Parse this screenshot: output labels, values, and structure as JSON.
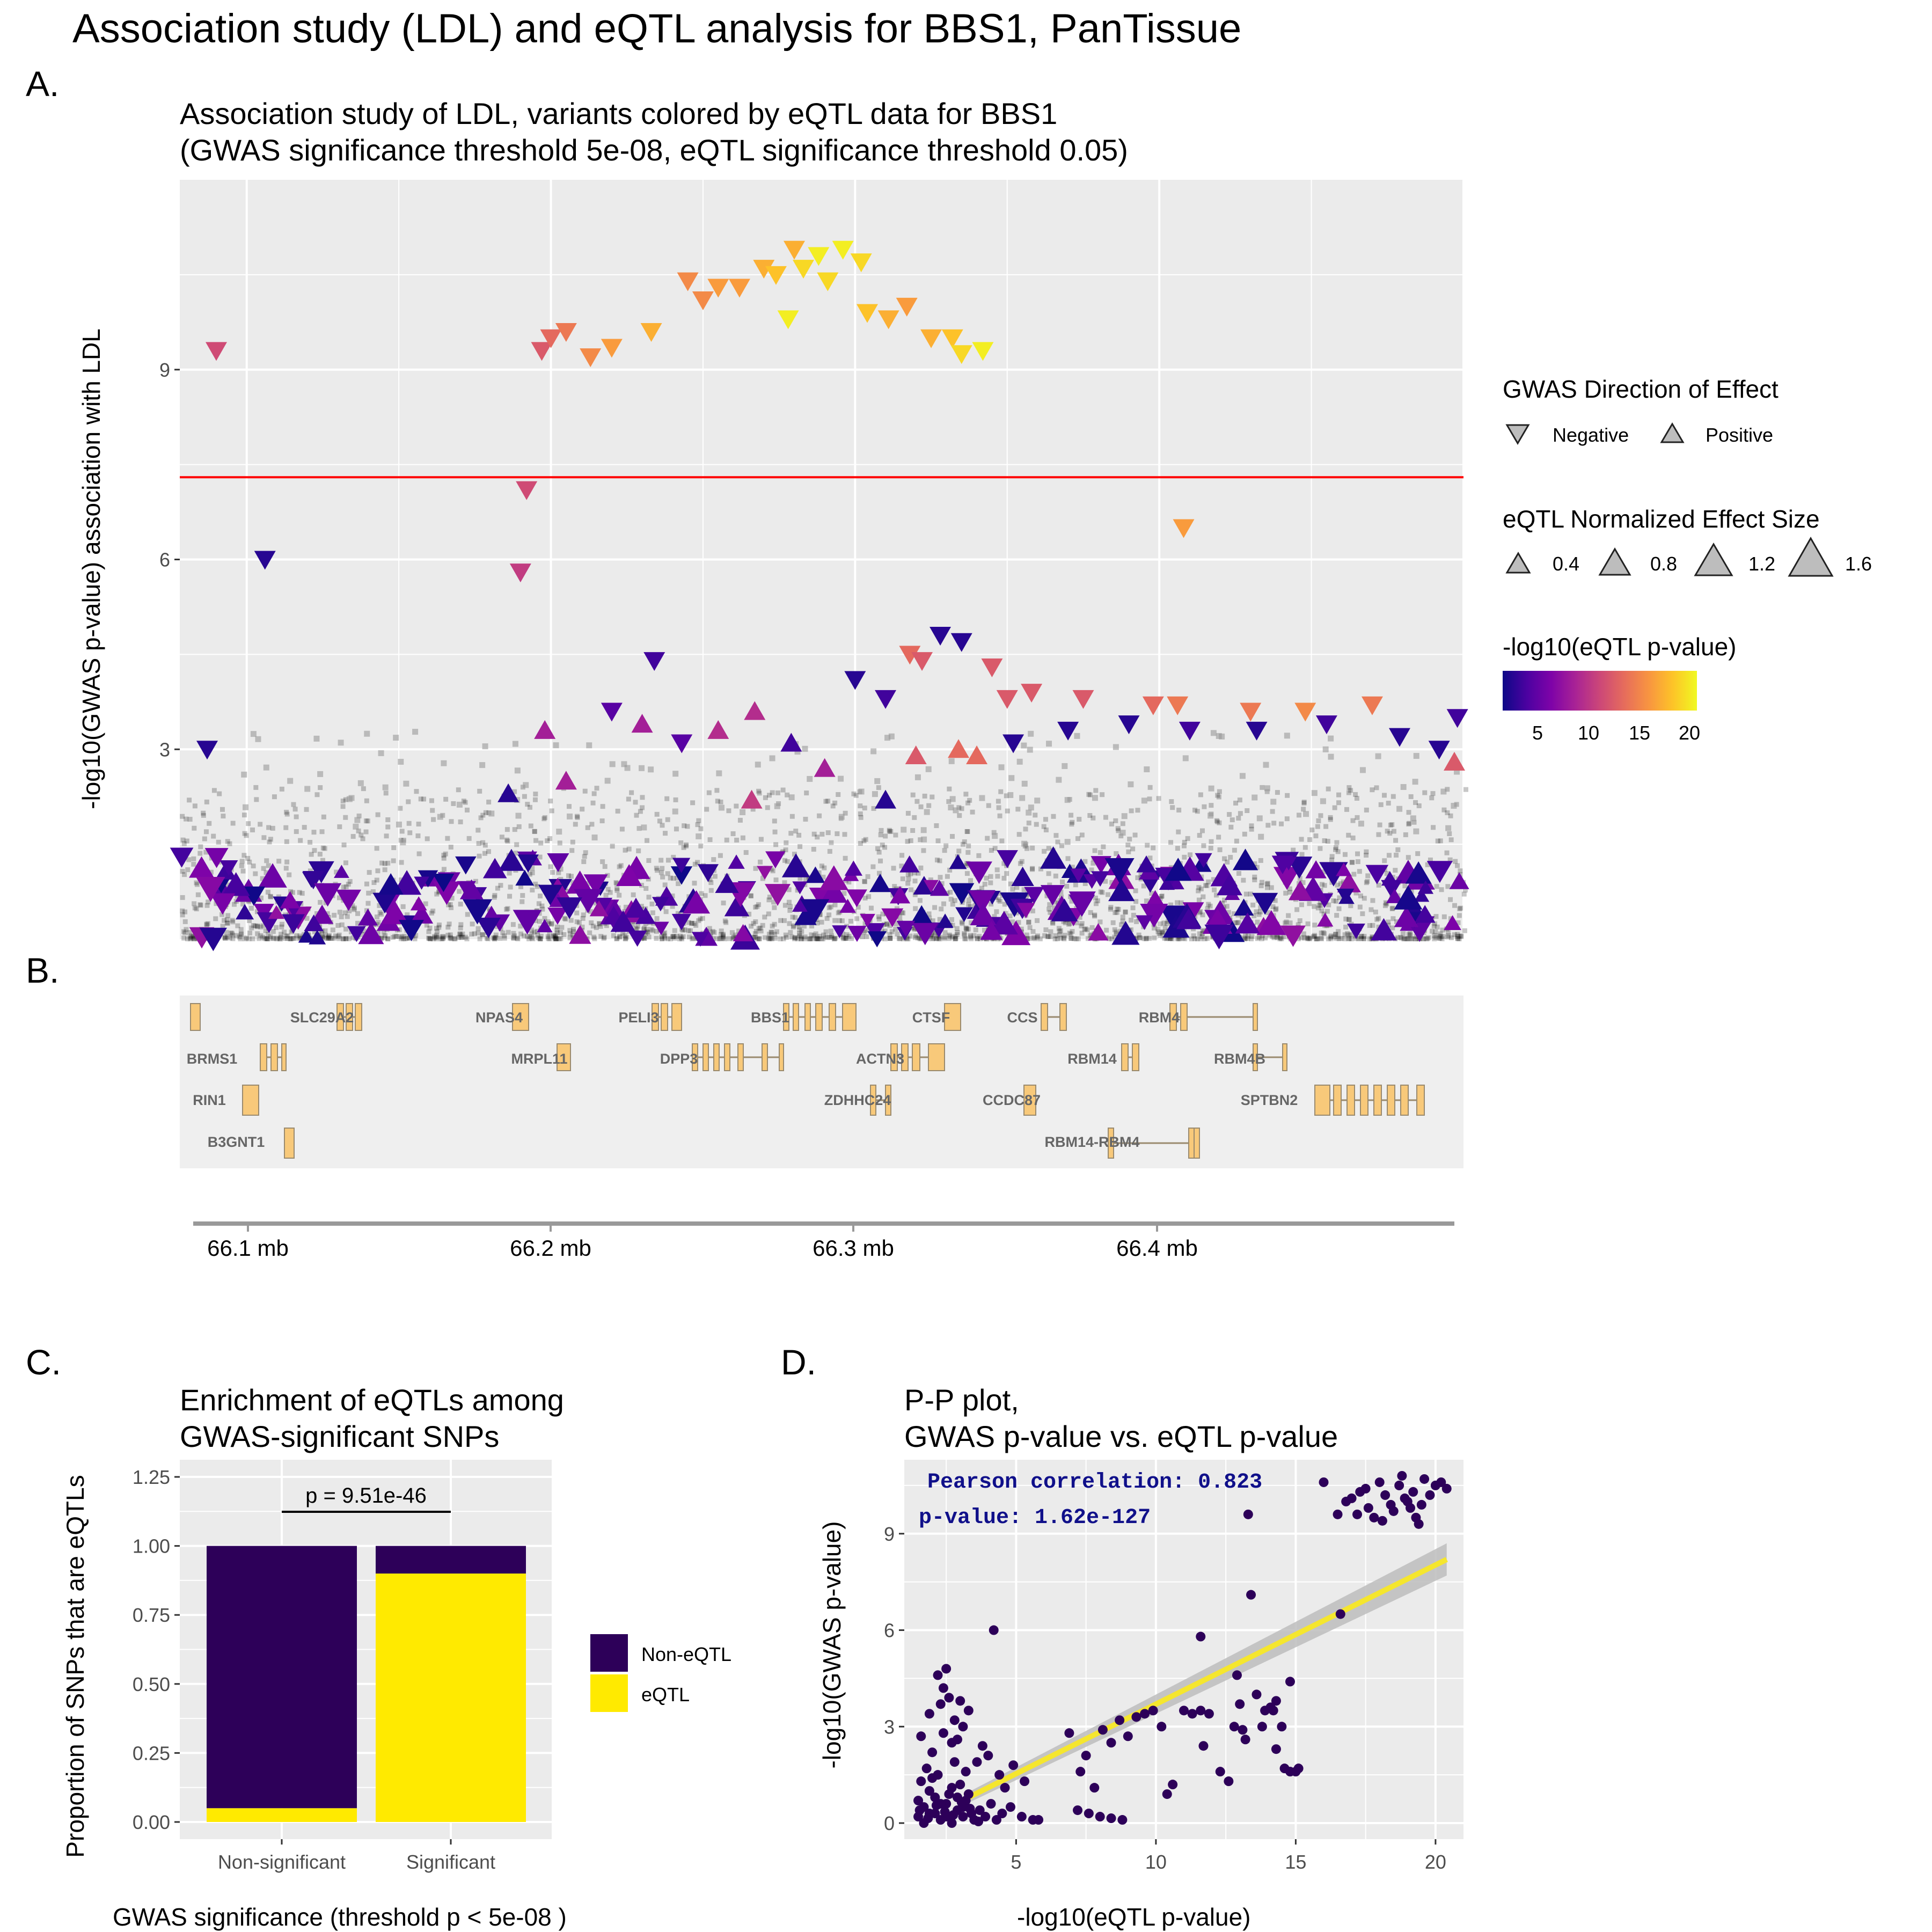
{
  "page_title": "Association study (LDL) and eQTL analysis for BBS1,  PanTissue",
  "panels": {
    "A": {
      "letter": "A.",
      "title_line1": "Association study of LDL, variants colored by eQTL data for BBS1",
      "title_line2": "(GWAS significance threshold 5e-08, eQTL significance threshold 0.05)",
      "ylabel": "-log10(GWAS p-value)  association with  LDL"
    },
    "B": {
      "letter": "B."
    },
    "C": {
      "letter": "C.",
      "title_line1": "Enrichment of eQTLs among",
      "title_line2": "GWAS-significant SNPs",
      "ylabel": "Proportion of SNPs that are eQTLs",
      "xlabel": "GWAS significance (threshold p < 5e-08 )",
      "pvalue_label": "p = 9.51e-46"
    },
    "D": {
      "letter": "D.",
      "title_line1": "P-P plot,",
      "title_line2": "GWAS p-value vs. eQTL p-value",
      "ylabel": "-log10(GWAS p-value)",
      "xlabel": "-log10(eQTL p-value)",
      "annotation_line1": "Pearson correlation: 0.823",
      "annotation_line2": "p-value: 1.62e-127"
    }
  },
  "legend": {
    "direction_title": "GWAS Direction of Effect",
    "direction_items": [
      "Negative",
      "Positive"
    ],
    "size_title": "eQTL Normalized Effect Size",
    "size_items": [
      "0.4",
      "0.8",
      "1.2",
      "1.6"
    ],
    "color_title": "-log10(eQTL p-value)",
    "color_ticks": [
      "5",
      "10",
      "15",
      "20"
    ],
    "bar_legend_items": [
      "Non-eQTL",
      "eQTL"
    ]
  },
  "colors": {
    "panel_bg": "#ebebeb",
    "grid": "#ffffff",
    "threshold_line": "#ff0000",
    "non_eqtl": "#2d0059",
    "eqtl": "#ffea00",
    "gene_fill": "#f8c97a",
    "gene_stroke": "#9a8a6e",
    "fit_line": "#f5e62e"
  },
  "chart_data": [
    {
      "type": "scatter",
      "title": "Association study of LDL, variants colored by eQTL data for BBS1",
      "subtitle": "(GWAS significance threshold 5e-08, eQTL significance threshold 0.05)",
      "ylabel": "-log10(GWAS p-value)  association with  LDL",
      "ylim": [
        0,
        12
      ],
      "yticks": [
        "3",
        "6",
        "9"
      ],
      "xlim": [
        66.078,
        66.5
      ],
      "threshold": 7.3,
      "highlighted_points": [
        {
          "x": 66.106,
          "y": 6.0,
          "dir": "neg",
          "c": 2
        },
        {
          "x": 66.087,
          "y": 3.0,
          "dir": "neg",
          "c": 2
        },
        {
          "x": 66.09,
          "y": 9.3,
          "dir": "neg",
          "c": 11
        },
        {
          "x": 66.192,
          "y": 7.1,
          "dir": "neg",
          "c": 11
        },
        {
          "x": 66.19,
          "y": 5.8,
          "dir": "neg",
          "c": 10
        },
        {
          "x": 66.197,
          "y": 9.3,
          "dir": "neg",
          "c": 12
        },
        {
          "x": 66.2,
          "y": 9.5,
          "dir": "neg",
          "c": 13
        },
        {
          "x": 66.205,
          "y": 9.6,
          "dir": "neg",
          "c": 14
        },
        {
          "x": 66.213,
          "y": 9.2,
          "dir": "neg",
          "c": 15
        },
        {
          "x": 66.22,
          "y": 9.35,
          "dir": "neg",
          "c": 16
        },
        {
          "x": 66.233,
          "y": 9.6,
          "dir": "neg",
          "c": 17
        },
        {
          "x": 66.245,
          "y": 10.4,
          "dir": "neg",
          "c": 15
        },
        {
          "x": 66.25,
          "y": 10.1,
          "dir": "neg",
          "c": 15
        },
        {
          "x": 66.255,
          "y": 10.3,
          "dir": "neg",
          "c": 16
        },
        {
          "x": 66.262,
          "y": 10.3,
          "dir": "neg",
          "c": 16
        },
        {
          "x": 66.27,
          "y": 10.6,
          "dir": "neg",
          "c": 17
        },
        {
          "x": 66.274,
          "y": 10.5,
          "dir": "neg",
          "c": 18
        },
        {
          "x": 66.28,
          "y": 10.9,
          "dir": "neg",
          "c": 17
        },
        {
          "x": 66.283,
          "y": 10.6,
          "dir": "neg",
          "c": 19
        },
        {
          "x": 66.288,
          "y": 10.8,
          "dir": "neg",
          "c": 20
        },
        {
          "x": 66.291,
          "y": 10.4,
          "dir": "neg",
          "c": 19
        },
        {
          "x": 66.296,
          "y": 10.9,
          "dir": "neg",
          "c": 20
        },
        {
          "x": 66.302,
          "y": 10.7,
          "dir": "neg",
          "c": 19
        },
        {
          "x": 66.304,
          "y": 9.9,
          "dir": "neg",
          "c": 18
        },
        {
          "x": 66.311,
          "y": 9.8,
          "dir": "neg",
          "c": 17
        },
        {
          "x": 66.317,
          "y": 10.0,
          "dir": "neg",
          "c": 16
        },
        {
          "x": 66.325,
          "y": 9.5,
          "dir": "neg",
          "c": 17
        },
        {
          "x": 66.332,
          "y": 9.5,
          "dir": "neg",
          "c": 18
        },
        {
          "x": 66.335,
          "y": 9.25,
          "dir": "neg",
          "c": 19
        },
        {
          "x": 66.342,
          "y": 9.3,
          "dir": "neg",
          "c": 20
        },
        {
          "x": 66.278,
          "y": 9.8,
          "dir": "neg",
          "c": 20
        },
        {
          "x": 66.408,
          "y": 6.5,
          "dir": "neg",
          "c": 16
        },
        {
          "x": 66.234,
          "y": 4.4,
          "dir": "neg",
          "c": 3
        },
        {
          "x": 66.3,
          "y": 4.1,
          "dir": "neg",
          "c": 2
        },
        {
          "x": 66.31,
          "y": 3.8,
          "dir": "neg",
          "c": 3
        },
        {
          "x": 66.328,
          "y": 4.8,
          "dir": "neg",
          "c": 2
        },
        {
          "x": 66.335,
          "y": 4.7,
          "dir": "neg",
          "c": 2
        },
        {
          "x": 66.318,
          "y": 4.5,
          "dir": "neg",
          "c": 13
        },
        {
          "x": 66.322,
          "y": 4.4,
          "dir": "neg",
          "c": 12
        },
        {
          "x": 66.345,
          "y": 4.3,
          "dir": "neg",
          "c": 12
        },
        {
          "x": 66.35,
          "y": 3.8,
          "dir": "neg",
          "c": 12
        },
        {
          "x": 66.358,
          "y": 3.9,
          "dir": "neg",
          "c": 12
        },
        {
          "x": 66.375,
          "y": 3.8,
          "dir": "neg",
          "c": 12
        },
        {
          "x": 66.398,
          "y": 3.7,
          "dir": "neg",
          "c": 13
        },
        {
          "x": 66.406,
          "y": 3.7,
          "dir": "neg",
          "c": 14
        },
        {
          "x": 66.43,
          "y": 3.6,
          "dir": "neg",
          "c": 14
        },
        {
          "x": 66.448,
          "y": 3.6,
          "dir": "neg",
          "c": 15
        },
        {
          "x": 66.47,
          "y": 3.7,
          "dir": "neg",
          "c": 14
        },
        {
          "x": 66.352,
          "y": 3.1,
          "dir": "neg",
          "c": 2
        },
        {
          "x": 66.37,
          "y": 3.3,
          "dir": "neg",
          "c": 2
        },
        {
          "x": 66.39,
          "y": 3.4,
          "dir": "neg",
          "c": 2
        },
        {
          "x": 66.41,
          "y": 3.3,
          "dir": "neg",
          "c": 3
        },
        {
          "x": 66.432,
          "y": 3.3,
          "dir": "neg",
          "c": 2
        },
        {
          "x": 66.455,
          "y": 3.4,
          "dir": "neg",
          "c": 3
        },
        {
          "x": 66.479,
          "y": 3.2,
          "dir": "neg",
          "c": 2
        },
        {
          "x": 66.492,
          "y": 3.0,
          "dir": "neg",
          "c": 2
        },
        {
          "x": 66.498,
          "y": 3.5,
          "dir": "neg",
          "c": 3
        },
        {
          "x": 66.22,
          "y": 3.6,
          "dir": "neg",
          "c": 4
        },
        {
          "x": 66.243,
          "y": 3.1,
          "dir": "neg",
          "c": 4
        },
        {
          "x": 66.279,
          "y": 3.1,
          "dir": "pos",
          "c": 3
        },
        {
          "x": 66.198,
          "y": 3.3,
          "dir": "pos",
          "c": 8
        },
        {
          "x": 66.205,
          "y": 2.5,
          "dir": "pos",
          "c": 8
        },
        {
          "x": 66.23,
          "y": 3.4,
          "dir": "pos",
          "c": 8
        },
        {
          "x": 66.255,
          "y": 3.3,
          "dir": "pos",
          "c": 9
        },
        {
          "x": 66.267,
          "y": 3.6,
          "dir": "pos",
          "c": 9
        },
        {
          "x": 66.266,
          "y": 2.2,
          "dir": "pos",
          "c": 10
        },
        {
          "x": 66.29,
          "y": 2.7,
          "dir": "pos",
          "c": 8
        },
        {
          "x": 66.32,
          "y": 2.9,
          "dir": "pos",
          "c": 12
        },
        {
          "x": 66.334,
          "y": 3.0,
          "dir": "pos",
          "c": 13
        },
        {
          "x": 66.34,
          "y": 2.9,
          "dir": "pos",
          "c": 13
        },
        {
          "x": 66.497,
          "y": 2.8,
          "dir": "pos",
          "c": 12
        },
        {
          "x": 66.186,
          "y": 2.3,
          "dir": "pos",
          "c": 2
        },
        {
          "x": 66.31,
          "y": 2.2,
          "dir": "pos",
          "c": 2
        }
      ],
      "background_points": "dense unlabeled black/grey points below y = 2.5"
    },
    {
      "type": "gene-track",
      "genes": [
        "SLC29A2",
        "NPAS4",
        "PELI3",
        "BBS1",
        "CTSF",
        "CCS",
        "RBM4",
        "BRMS1",
        "MRPL11",
        "DPP3",
        "ACTN3",
        "RBM14",
        "RBM4B",
        "RIN1",
        "ZDHHC24",
        "CCDC87",
        "SPTBN2",
        "B3GNT1",
        "RBM14-RBM4"
      ],
      "xticks": [
        "66.1 mb",
        "66.2 mb",
        "66.3 mb",
        "66.4 mb"
      ]
    },
    {
      "type": "bar",
      "title": "Enrichment of eQTLs among",
      "subtitle": "GWAS-significant SNPs",
      "categories": [
        "Non-significant",
        "Significant"
      ],
      "series": [
        {
          "name": "eQTL",
          "values": [
            0.05,
            0.9
          ]
        },
        {
          "name": "Non-eQTL",
          "values": [
            0.95,
            0.1
          ]
        }
      ],
      "xlabel": "GWAS significance (threshold p < 5e-08 )",
      "ylabel": "Proportion of SNPs that are eQTLs",
      "ylim": [
        0,
        1.25
      ],
      "yticks": [
        "0.00",
        "0.25",
        "0.50",
        "0.75",
        "1.00",
        "1.25"
      ],
      "annotation": "p = 9.51e-46",
      "stacked": true
    },
    {
      "type": "scatter",
      "title": "P-P plot,",
      "subtitle": "GWAS p-value vs. eQTL p-value",
      "xlabel": "-log10(eQTL p-value)",
      "ylabel": "-log10(GWAS p-value)",
      "xlim": [
        1,
        21
      ],
      "ylim": [
        -0.5,
        11.3
      ],
      "xticks": [
        "5",
        "10",
        "15",
        "20"
      ],
      "yticks": [
        "0",
        "3",
        "6",
        "9"
      ],
      "fit_line": {
        "x1": 3.3,
        "y1": 0.8,
        "x2": 20.4,
        "y2": 8.2
      },
      "points": [
        [
          1.5,
          0.2
        ],
        [
          1.7,
          0.5
        ],
        [
          1.9,
          0.3
        ],
        [
          2.1,
          0.8
        ],
        [
          2.3,
          0.1
        ],
        [
          2.5,
          0.6
        ],
        [
          2.7,
          1.1
        ],
        [
          2.9,
          0.4
        ],
        [
          3.1,
          0.2
        ],
        [
          3.3,
          0.9
        ],
        [
          1.6,
          1.3
        ],
        [
          1.8,
          1.7
        ],
        [
          2.0,
          2.2
        ],
        [
          2.2,
          1.5
        ],
        [
          2.4,
          2.8
        ],
        [
          2.6,
          0.9
        ],
        [
          2.8,
          1.9
        ],
        [
          3.0,
          1.2
        ],
        [
          3.2,
          0.7
        ],
        [
          3.4,
          0.3
        ],
        [
          1.5,
          0.7
        ],
        [
          1.7,
          0.0
        ],
        [
          1.9,
          1.0
        ],
        [
          2.1,
          0.3
        ],
        [
          2.3,
          0.6
        ],
        [
          2.5,
          0.2
        ],
        [
          2.7,
          0.0
        ],
        [
          2.9,
          0.8
        ],
        [
          3.1,
          0.5
        ],
        [
          3.5,
          0.1
        ],
        [
          3.7,
          0.4
        ],
        [
          3.9,
          0.2
        ],
        [
          4.1,
          0.6
        ],
        [
          4.3,
          0.1
        ],
        [
          4.5,
          0.3
        ],
        [
          4.8,
          0.5
        ],
        [
          5.2,
          0.2
        ],
        [
          5.6,
          0.1
        ],
        [
          1.55,
          0.4
        ],
        [
          1.85,
          0.15
        ],
        [
          2.15,
          0.55
        ],
        [
          2.45,
          0.35
        ],
        [
          2.75,
          0.25
        ],
        [
          3.05,
          0.65
        ],
        [
          3.35,
          0.45
        ],
        [
          3.65,
          0.05
        ],
        [
          1.6,
          2.7
        ],
        [
          1.9,
          3.4
        ],
        [
          2.2,
          4.6
        ],
        [
          2.4,
          4.2
        ],
        [
          2.6,
          3.9
        ],
        [
          2.8,
          3.2
        ],
        [
          3.1,
          3.0
        ],
        [
          3.3,
          3.5
        ],
        [
          2.5,
          4.8
        ],
        [
          2.3,
          3.7
        ],
        [
          2.7,
          2.5
        ],
        [
          3.0,
          3.8
        ],
        [
          4.2,
          6.0
        ],
        [
          3.6,
          1.9
        ],
        [
          4.0,
          2.1
        ],
        [
          4.6,
          1.1
        ],
        [
          4.9,
          1.8
        ],
        [
          5.3,
          1.3
        ],
        [
          5.8,
          0.1
        ],
        [
          2.0,
          1.4
        ],
        [
          2.9,
          2.6
        ],
        [
          3.2,
          1.6
        ],
        [
          3.8,
          2.4
        ],
        [
          4.4,
          1.5
        ],
        [
          6.9,
          2.8
        ],
        [
          7.3,
          1.6
        ],
        [
          7.5,
          2.1
        ],
        [
          7.8,
          1.1
        ],
        [
          8.1,
          2.9
        ],
        [
          8.4,
          2.5
        ],
        [
          8.7,
          3.2
        ],
        [
          9.0,
          2.7
        ],
        [
          9.3,
          3.3
        ],
        [
          9.6,
          3.4
        ],
        [
          9.9,
          3.5
        ],
        [
          10.2,
          3.0
        ],
        [
          10.4,
          0.9
        ],
        [
          10.6,
          1.2
        ],
        [
          7.2,
          0.4
        ],
        [
          7.6,
          0.3
        ],
        [
          8.0,
          0.2
        ],
        [
          8.4,
          0.15
        ],
        [
          8.8,
          0.1
        ],
        [
          11.0,
          3.5
        ],
        [
          11.3,
          3.4
        ],
        [
          11.6,
          3.5
        ],
        [
          11.9,
          3.4
        ],
        [
          11.6,
          5.8
        ],
        [
          11.7,
          2.4
        ],
        [
          12.3,
          1.6
        ],
        [
          12.6,
          1.3
        ],
        [
          12.8,
          3.0
        ],
        [
          13.1,
          2.9
        ],
        [
          13.4,
          7.1
        ],
        [
          13.0,
          3.7
        ],
        [
          13.6,
          4.0
        ],
        [
          13.9,
          3.5
        ],
        [
          14.1,
          3.6
        ],
        [
          14.3,
          3.8
        ],
        [
          14.5,
          3.0
        ],
        [
          14.8,
          4.4
        ],
        [
          14.3,
          2.3
        ],
        [
          14.6,
          1.7
        ],
        [
          14.8,
          1.6
        ],
        [
          15.0,
          1.6
        ],
        [
          15.1,
          1.7
        ],
        [
          13.8,
          3.0
        ],
        [
          14.2,
          3.5
        ],
        [
          13.2,
          2.6
        ],
        [
          12.9,
          4.6
        ],
        [
          16.6,
          6.5
        ],
        [
          13.3,
          9.6
        ],
        [
          16.0,
          10.6
        ],
        [
          16.5,
          9.6
        ],
        [
          16.8,
          10.0
        ],
        [
          17.0,
          10.1
        ],
        [
          17.3,
          10.3
        ],
        [
          17.5,
          10.4
        ],
        [
          17.6,
          9.8
        ],
        [
          17.8,
          9.5
        ],
        [
          18.0,
          10.6
        ],
        [
          18.2,
          10.2
        ],
        [
          18.4,
          9.9
        ],
        [
          18.5,
          9.7
        ],
        [
          18.7,
          10.5
        ],
        [
          18.8,
          10.8
        ],
        [
          19.0,
          10.0
        ],
        [
          19.1,
          9.8
        ],
        [
          19.2,
          10.3
        ],
        [
          19.3,
          9.5
        ],
        [
          19.4,
          9.3
        ],
        [
          19.6,
          10.7
        ],
        [
          19.8,
          10.2
        ],
        [
          20.0,
          10.5
        ],
        [
          20.2,
          10.6
        ],
        [
          20.4,
          10.4
        ],
        [
          18.1,
          9.4
        ],
        [
          17.2,
          9.6
        ],
        [
          18.9,
          10.1
        ],
        [
          19.5,
          9.9
        ]
      ]
    }
  ]
}
